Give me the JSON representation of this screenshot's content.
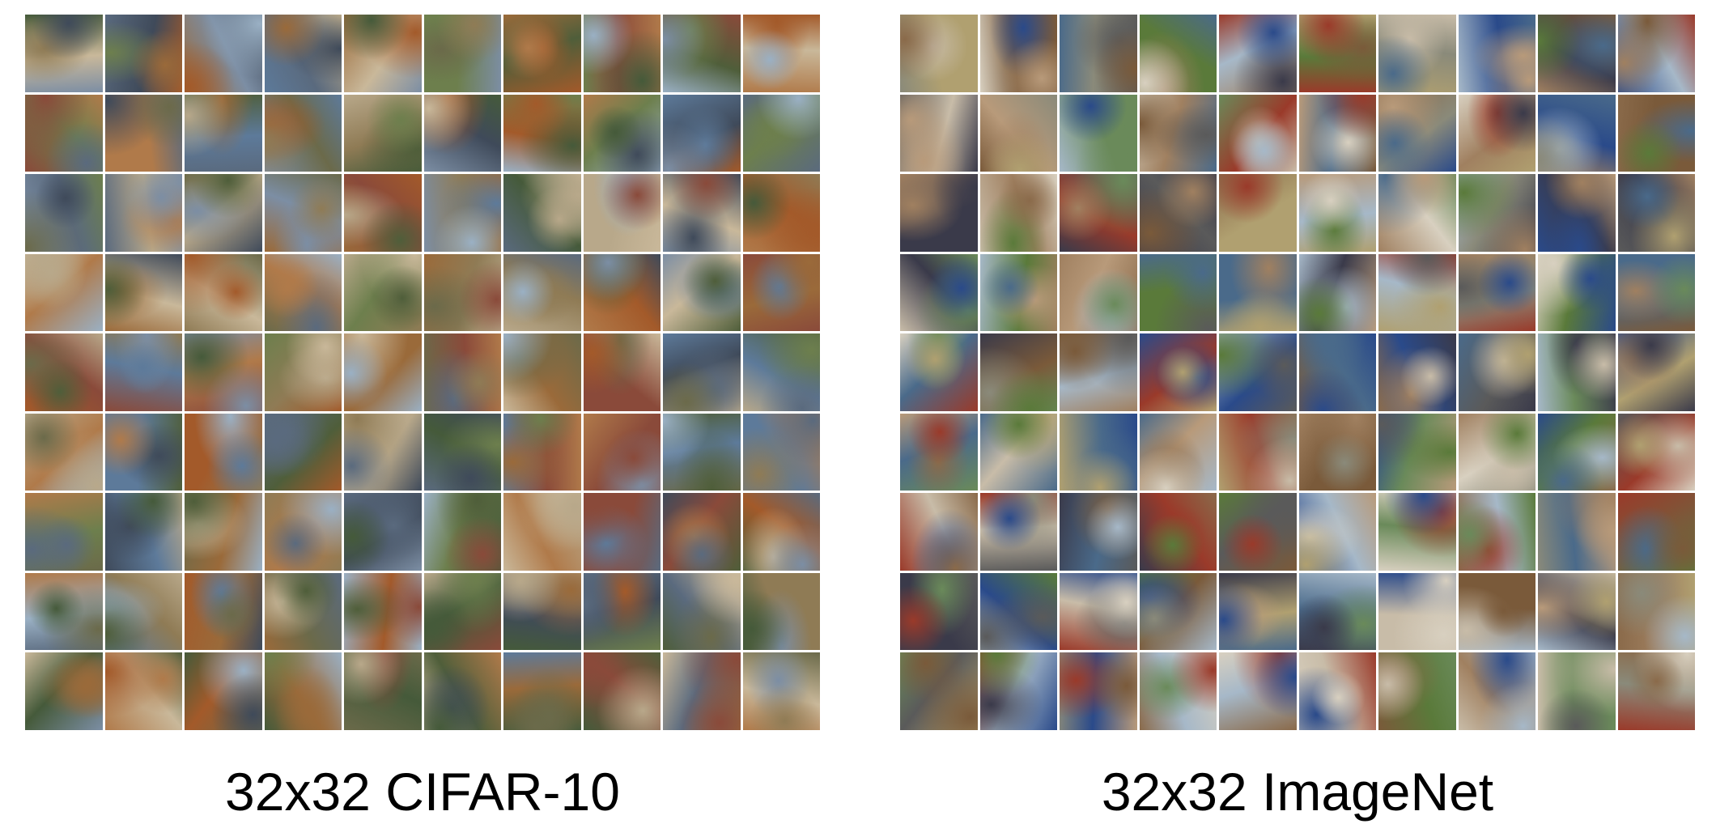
{
  "panels": [
    {
      "caption": "32x32 CIFAR-10",
      "rows": 9,
      "cols": 10,
      "palette": [
        "#6b6a4a",
        "#8f7b55",
        "#5a6a7e",
        "#9a6a3a",
        "#4f5e3a",
        "#b8a88a",
        "#7c8ea4",
        "#a35a2a",
        "#3f4a5a",
        "#c9b89a",
        "#6d7f4d",
        "#8a4a3a",
        "#5d7a9a",
        "#b07a4a",
        "#455a3a",
        "#9ab0c4"
      ]
    },
    {
      "caption": "32x32 ImageNet",
      "rows": 9,
      "cols": 10,
      "palette": [
        "#8a8a7a",
        "#5a7a3a",
        "#b89a7a",
        "#3a3a4a",
        "#a6b8c8",
        "#7a5a3a",
        "#c8bca8",
        "#4a6a8a",
        "#9a3a2a",
        "#6a8a5a",
        "#d8d0c0",
        "#2a4a8a",
        "#8a6a4a",
        "#b0a070",
        "#5a5a5a",
        "#a08060"
      ]
    }
  ]
}
